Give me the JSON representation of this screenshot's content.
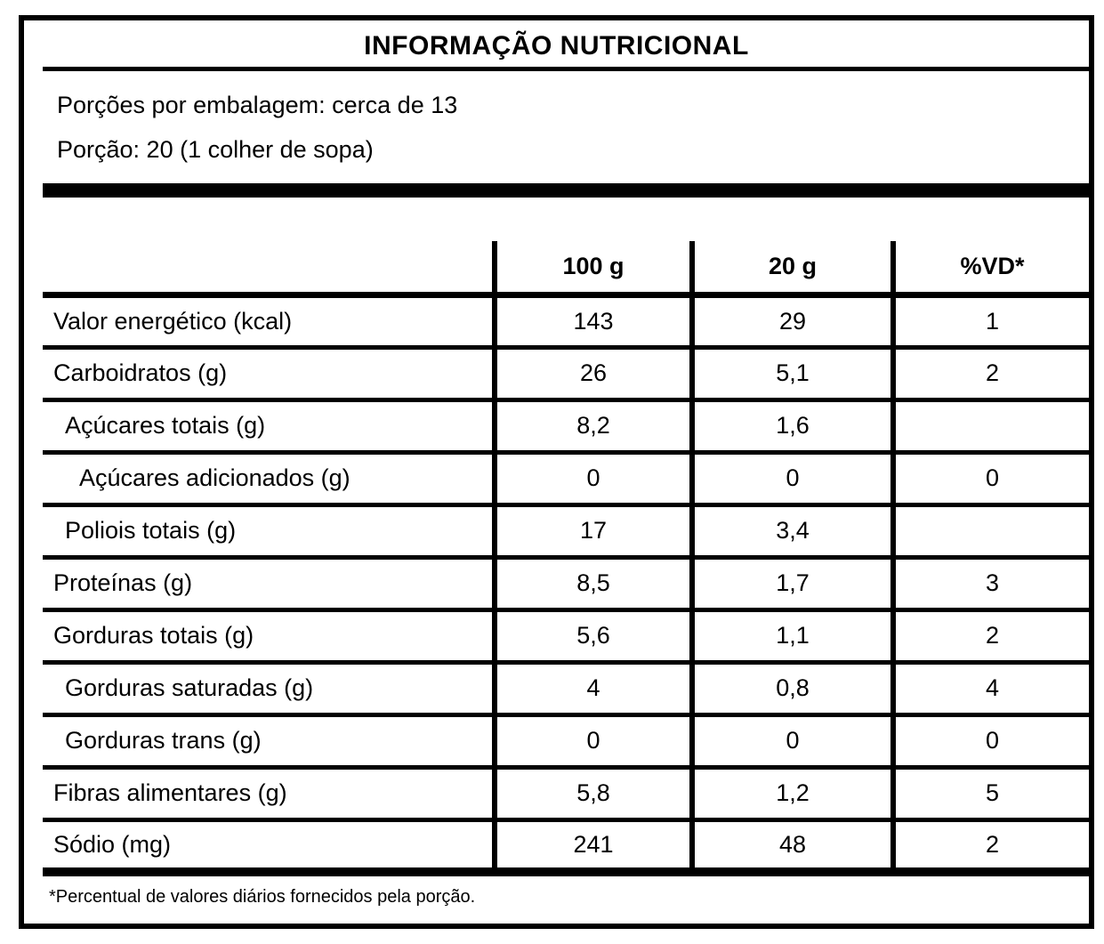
{
  "label": {
    "title": "INFORMAÇÃO NUTRICIONAL",
    "servings_per_package": "Porções por embalagem: cerca de 13",
    "portion": "Porção: 20 (1 colher de sopa)",
    "footnote": "*Percentual de valores diários fornecidos pela porção.",
    "colors": {
      "ink": "#000000",
      "paper": "#ffffff"
    }
  },
  "table": {
    "columns": [
      "",
      "100 g",
      "20 g",
      "%VD*"
    ],
    "rows": [
      {
        "label": "Valor energético (kcal)",
        "indent": 0,
        "per100": "143",
        "per20": "29",
        "vd": "1"
      },
      {
        "label": "Carboidratos (g)",
        "indent": 0,
        "per100": "26",
        "per20": "5,1",
        "vd": "2"
      },
      {
        "label": "Açúcares totais (g)",
        "indent": 1,
        "per100": "8,2",
        "per20": "1,6",
        "vd": ""
      },
      {
        "label": "Açúcares adicionados (g)",
        "indent": 2,
        "per100": "0",
        "per20": "0",
        "vd": "0"
      },
      {
        "label": "Poliois totais (g)",
        "indent": 1,
        "per100": "17",
        "per20": "3,4",
        "vd": ""
      },
      {
        "label": "Proteínas (g)",
        "indent": 0,
        "per100": "8,5",
        "per20": "1,7",
        "vd": "3"
      },
      {
        "label": "Gorduras totais (g)",
        "indent": 0,
        "per100": "5,6",
        "per20": "1,1",
        "vd": "2"
      },
      {
        "label": "Gorduras saturadas (g)",
        "indent": 1,
        "per100": "4",
        "per20": "0,8",
        "vd": "4"
      },
      {
        "label": "Gorduras trans (g)",
        "indent": 1,
        "per100": "0",
        "per20": "0",
        "vd": "0"
      },
      {
        "label": "Fibras alimentares (g)",
        "indent": 0,
        "per100": "5,8",
        "per20": "1,2",
        "vd": "5"
      },
      {
        "label": "Sódio (mg)",
        "indent": 0,
        "per100": "241",
        "per20": "48",
        "vd": "2"
      }
    ]
  }
}
